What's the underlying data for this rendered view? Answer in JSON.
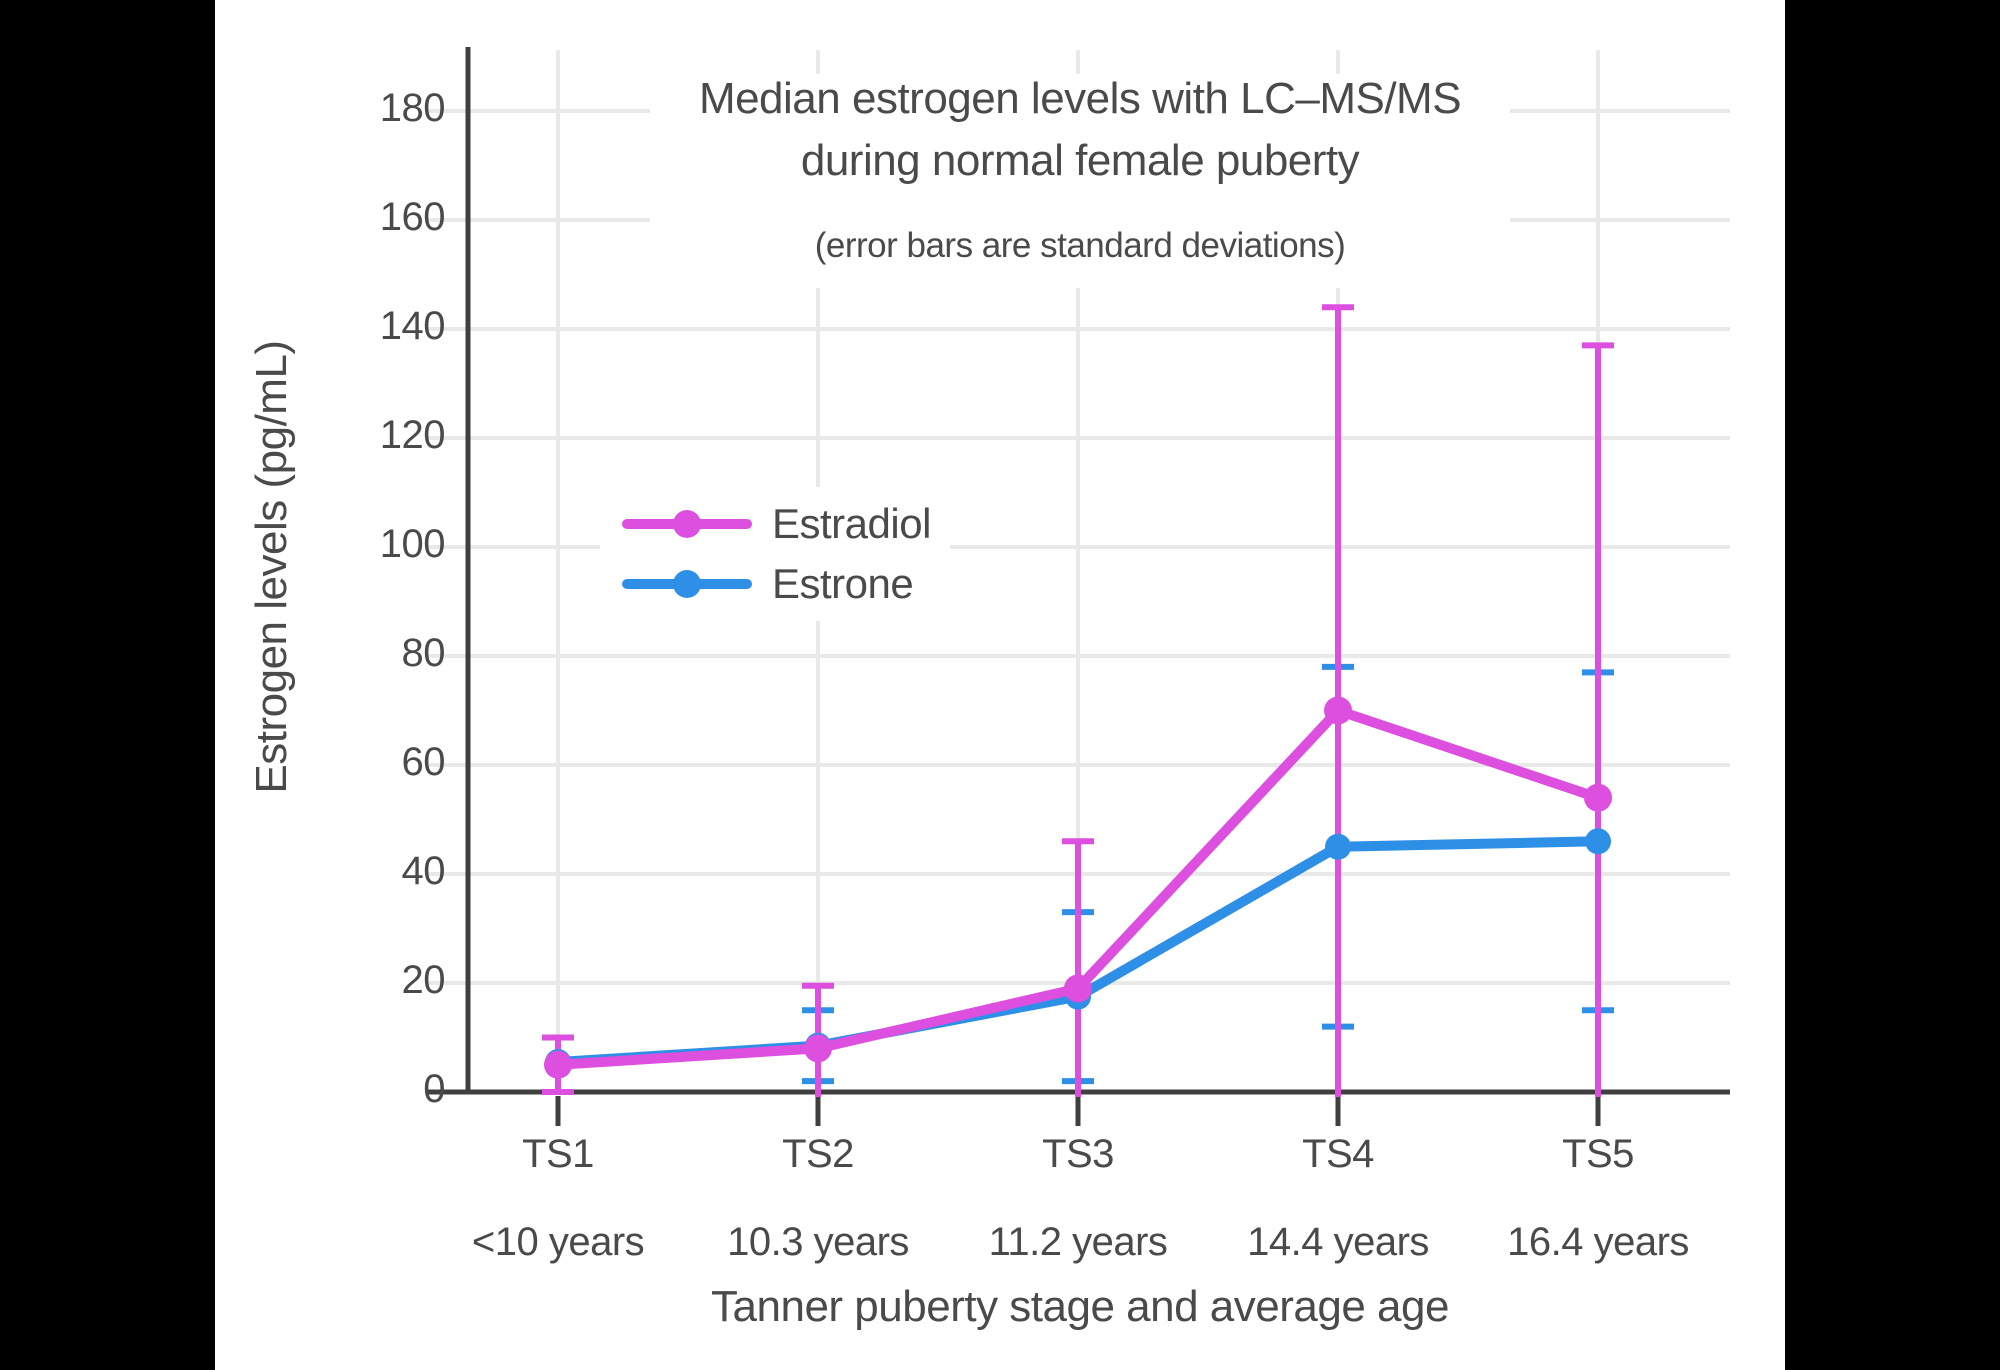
{
  "canvas": {
    "background": "#000000",
    "panel_background": "#ffffff"
  },
  "chart_data": {
    "type": "line",
    "title_line1": "Median estrogen levels with LC–MS/MS",
    "title_line2": "during normal female puberty",
    "subtitle": "(error bars are standard deviations)",
    "xlabel": "Tanner puberty stage and average age",
    "ylabel": "Estrogen levels (pg/mL)",
    "ylim": [
      0,
      190
    ],
    "yticks": [
      0,
      20,
      40,
      60,
      80,
      100,
      120,
      140,
      160,
      180
    ],
    "grid": true,
    "legend_position": "inside upper-left",
    "categories": [
      "TS1",
      "TS2",
      "TS3",
      "TS4",
      "TS5"
    ],
    "category_ages": [
      "<10 years",
      "10.3 years",
      "11.2 years",
      "14.4 years",
      "16.4 years"
    ],
    "series": [
      {
        "name": "Estradiol",
        "color": "#DD4FDF",
        "values": [
          5,
          8,
          19,
          70,
          54
        ],
        "error_top": [
          10,
          19.5,
          46,
          144,
          137
        ],
        "error_bottom": [
          0,
          0,
          0,
          0,
          0
        ],
        "error_bottom_clipped": [
          false,
          true,
          true,
          true,
          true
        ]
      },
      {
        "name": "Estrone",
        "color": "#2E8FE6",
        "values": [
          5.5,
          8.5,
          17.5,
          45,
          46
        ],
        "error_top": [
          null,
          15,
          33,
          78,
          77
        ],
        "error_bottom": [
          null,
          2,
          2,
          12,
          15
        ],
        "error_bottom_clipped": [
          false,
          false,
          false,
          false,
          false
        ]
      }
    ],
    "colors": {
      "axis": "#3F3F3F",
      "grid": "#E9E9E9",
      "text": "#4A4A4A"
    }
  }
}
